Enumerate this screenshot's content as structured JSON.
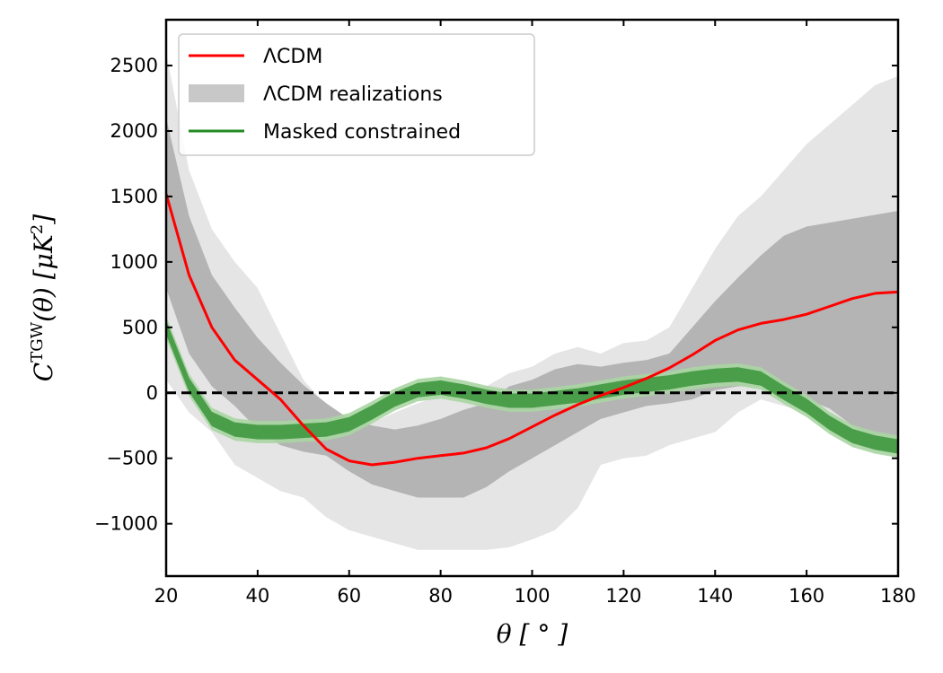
{
  "chart_data": {
    "type": "line",
    "xlabel": "θ [ ° ]",
    "ylabel": "C^TGW(θ) [μK^2]",
    "xlim": [
      20,
      180
    ],
    "ylim": [
      -1400,
      2850
    ],
    "xticks": [
      20,
      40,
      60,
      80,
      100,
      120,
      140,
      160,
      180
    ],
    "yticks": [
      -1000,
      -500,
      0,
      500,
      1000,
      1500,
      2000,
      2500
    ],
    "xtick_labels": [
      "20",
      "40",
      "60",
      "80",
      "100",
      "120",
      "140",
      "160",
      "180"
    ],
    "ytick_labels": [
      "−1000",
      "−500",
      "0",
      "500",
      "1000",
      "1500",
      "2000",
      "2500"
    ],
    "zero_line": true,
    "legend_position": "top-left",
    "legend": [
      {
        "label": "ΛCDM",
        "kind": "line",
        "color": "#ff0000"
      },
      {
        "label": "ΛCDM realizations",
        "kind": "band",
        "color": "#c8c8c8"
      },
      {
        "label": "Masked constrained",
        "kind": "line",
        "color": "#228b22"
      }
    ],
    "series": [
      {
        "name": "ΛCDM",
        "color": "#ff0000",
        "x": [
          20,
          25,
          30,
          35,
          40,
          45,
          50,
          55,
          60,
          65,
          70,
          75,
          80,
          85,
          90,
          95,
          100,
          105,
          110,
          115,
          120,
          125,
          130,
          135,
          140,
          145,
          150,
          155,
          160,
          165,
          170,
          175,
          180
        ],
        "y": [
          1520,
          900,
          500,
          250,
          100,
          -50,
          -250,
          -430,
          -520,
          -550,
          -530,
          -500,
          -480,
          -460,
          -420,
          -350,
          -260,
          -170,
          -90,
          -20,
          40,
          110,
          190,
          290,
          400,
          480,
          530,
          560,
          600,
          660,
          720,
          760,
          770
        ]
      },
      {
        "name": "ΛCDM realizations 95%",
        "color": "#e5e5e5",
        "x": [
          20,
          25,
          30,
          35,
          40,
          45,
          50,
          55,
          60,
          65,
          70,
          75,
          80,
          85,
          90,
          95,
          100,
          105,
          110,
          115,
          120,
          125,
          130,
          135,
          140,
          145,
          150,
          155,
          160,
          165,
          170,
          175,
          180
        ],
        "upper": [
          2600,
          1700,
          1250,
          1000,
          800,
          450,
          100,
          -100,
          -220,
          -230,
          -150,
          -80,
          -20,
          20,
          50,
          150,
          200,
          300,
          350,
          300,
          380,
          400,
          500,
          800,
          1100,
          1350,
          1500,
          1700,
          1900,
          2050,
          2200,
          2350,
          2420
        ],
        "lower": [
          100,
          -150,
          -300,
          -550,
          -650,
          -750,
          -800,
          -950,
          -1050,
          -1100,
          -1150,
          -1200,
          -1200,
          -1200,
          -1200,
          -1180,
          -1120,
          -1050,
          -880,
          -550,
          -500,
          -480,
          -400,
          -350,
          -300,
          -150,
          -50,
          -100,
          -150,
          -250,
          -320,
          -380,
          -400
        ]
      },
      {
        "name": "ΛCDM realizations 68%",
        "color": "#b4b4b4",
        "x": [
          20,
          25,
          30,
          35,
          40,
          45,
          50,
          55,
          60,
          65,
          70,
          75,
          80,
          85,
          90,
          95,
          100,
          105,
          110,
          115,
          120,
          125,
          130,
          135,
          140,
          145,
          150,
          155,
          160,
          165,
          170,
          175,
          180
        ],
        "upper": [
          2100,
          1350,
          900,
          650,
          420,
          230,
          60,
          -80,
          -200,
          -250,
          -280,
          -250,
          -200,
          -130,
          -80,
          50,
          100,
          180,
          220,
          200,
          230,
          250,
          300,
          500,
          700,
          880,
          1050,
          1200,
          1270,
          1300,
          1330,
          1360,
          1390
        ],
        "lower": [
          800,
          300,
          50,
          -100,
          -280,
          -400,
          -450,
          -480,
          -600,
          -700,
          -750,
          -800,
          -800,
          -800,
          -720,
          -600,
          -500,
          -400,
          -300,
          -200,
          -150,
          -100,
          -80,
          -50,
          20,
          50,
          50,
          50,
          -50,
          -120,
          -250,
          -350,
          -420
        ]
      },
      {
        "name": "Masked constrained",
        "color": "#228b22",
        "x": [
          20,
          25,
          30,
          35,
          40,
          45,
          50,
          55,
          60,
          65,
          70,
          75,
          80,
          85,
          90,
          95,
          100,
          105,
          110,
          115,
          120,
          125,
          130,
          135,
          140,
          145,
          150,
          155,
          160,
          165,
          170,
          175,
          180
        ],
        "y": [
          500,
          60,
          -200,
          -280,
          -300,
          -300,
          -290,
          -280,
          -240,
          -150,
          -50,
          20,
          40,
          10,
          -30,
          -60,
          -60,
          -40,
          -20,
          10,
          40,
          60,
          80,
          110,
          130,
          140,
          110,
          0,
          -100,
          -230,
          -330,
          -380,
          -410
        ],
        "band_inner": 55,
        "band_outer": 85
      }
    ]
  }
}
